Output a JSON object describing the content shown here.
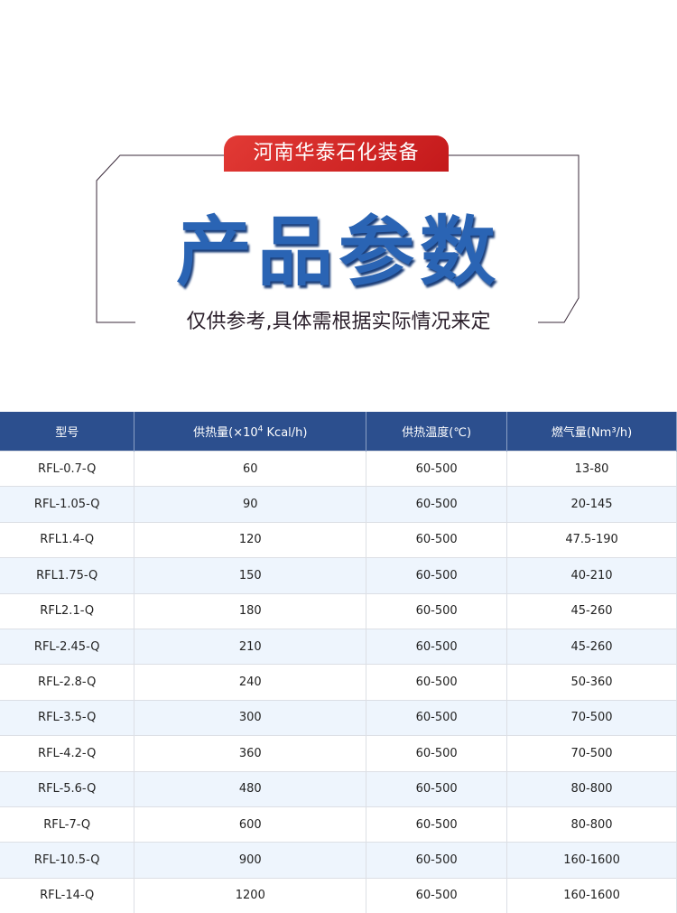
{
  "banner": "河南华泰石化装备",
  "title": "产品参数",
  "subtitle": "仅供参考,具体需根据实际情况来定",
  "colors": {
    "header_bg": "#2c4f8e",
    "title_blue": "#2a64b4",
    "banner_red": "#d42a27",
    "alt_row": "#eef5fd"
  },
  "table": {
    "headers": [
      "型号",
      "供热量(×10",
      "供热温度(℃)",
      "燃气量(Nm³/h)"
    ],
    "header_sup": "4",
    "header_tail": " Kcal/h)",
    "rows": [
      [
        "RFL-0.7-Q",
        "60",
        "60-500",
        "13-80"
      ],
      [
        "RFL-1.05-Q",
        "90",
        "60-500",
        "20-145"
      ],
      [
        "RFL1.4-Q",
        "120",
        "60-500",
        "47.5-190"
      ],
      [
        "RFL1.75-Q",
        "150",
        "60-500",
        "40-210"
      ],
      [
        "RFL2.1-Q",
        "180",
        "60-500",
        "45-260"
      ],
      [
        "RFL-2.45-Q",
        "210",
        "60-500",
        "45-260"
      ],
      [
        "RFL-2.8-Q",
        "240",
        "60-500",
        "50-360"
      ],
      [
        "RFL-3.5-Q",
        "300",
        "60-500",
        "70-500"
      ],
      [
        "RFL-4.2-Q",
        "360",
        "60-500",
        "70-500"
      ],
      [
        "RFL-5.6-Q",
        "480",
        "60-500",
        "80-800"
      ],
      [
        "RFL-7-Q",
        "600",
        "60-500",
        "80-800"
      ],
      [
        "RFL-10.5-Q",
        "900",
        "60-500",
        "160-1600"
      ],
      [
        "RFL-14-Q",
        "1200",
        "60-500",
        "160-1600"
      ]
    ]
  }
}
